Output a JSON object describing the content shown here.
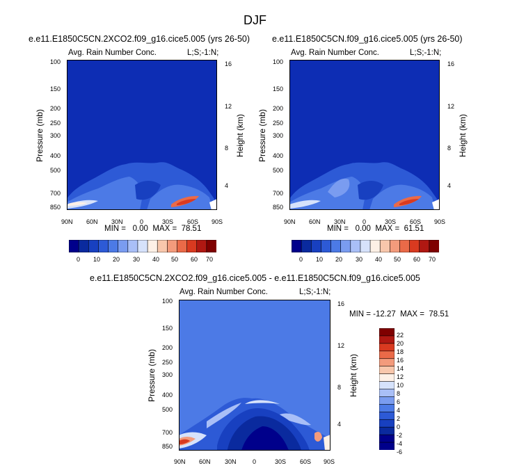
{
  "figure_title": "DJF",
  "chart_data": [
    {
      "type": "heatmap",
      "title": "e.e11.E1850C5CN.2XCO2.f09_g16.cice5.005 (yrs 26-50)",
      "left_label": "Avg. Rain Number Conc.",
      "right_label": "L;S;-1:N;",
      "xlabel": "",
      "ylabel": "Pressure (mb)",
      "ylabel_right": "Height (km)",
      "x_ticks": [
        "90N",
        "60N",
        "30N",
        "0",
        "30S",
        "60S",
        "90S"
      ],
      "y_ticks": [
        "100",
        "150",
        "200",
        "250",
        "300",
        "400",
        "500",
        "700",
        "850"
      ],
      "y_right_ticks": [
        "16",
        "12",
        "8",
        "4"
      ],
      "ylim": [
        100,
        1000
      ],
      "stats": "MIN =   0.00  MAX =  78.51",
      "colorbar_ticks": [
        "0",
        "10",
        "20",
        "30",
        "40",
        "50",
        "60",
        "70"
      ]
    },
    {
      "type": "heatmap",
      "title": "e.e11.E1850C5CN.f09_g16.cice5.005 (yrs 26-50)",
      "left_label": "Avg. Rain Number Conc.",
      "right_label": "L;S;-1:N;",
      "xlabel": "",
      "ylabel": "Pressure (mb)",
      "ylabel_right": "Height (km)",
      "x_ticks": [
        "90N",
        "60N",
        "30N",
        "0",
        "30S",
        "60S",
        "90S"
      ],
      "y_ticks": [
        "100",
        "150",
        "200",
        "250",
        "300",
        "400",
        "500",
        "700",
        "850"
      ],
      "y_right_ticks": [
        "16",
        "12",
        "8",
        "4"
      ],
      "ylim": [
        100,
        1000
      ],
      "stats": "MIN =   0.00  MAX =  61.51",
      "colorbar_ticks": [
        "0",
        "10",
        "20",
        "30",
        "40",
        "50",
        "60",
        "70"
      ]
    },
    {
      "type": "heatmap",
      "title": "e.e11.E1850C5CN.2XCO2.f09_g16.cice5.005 - e.e11.E1850C5CN.f09_g16.cice5.005",
      "left_label": "Avg. Rain Number Conc.",
      "right_label": "L;S;-1:N;",
      "xlabel": "",
      "ylabel": "Pressure (mb)",
      "ylabel_right": "Height (km)",
      "x_ticks": [
        "90N",
        "60N",
        "30N",
        "0",
        "30S",
        "60S",
        "90S"
      ],
      "y_ticks": [
        "100",
        "150",
        "200",
        "250",
        "300",
        "400",
        "500",
        "700",
        "850"
      ],
      "y_right_ticks": [
        "16",
        "12",
        "8",
        "4"
      ],
      "ylim": [
        100,
        1000
      ],
      "stats": "MIN = -12.27  MAX =  78.51",
      "colorbar_ticks": [
        "22",
        "20",
        "18",
        "16",
        "14",
        "12",
        "10",
        "8",
        "6",
        "4",
        "2",
        "0",
        "-2",
        "-4",
        "-6"
      ]
    }
  ],
  "colors": {
    "background_blue": "#0d2db4",
    "palette": [
      "#00008b",
      "#0a2a9e",
      "#1840c0",
      "#2d5ad6",
      "#4c7ae6",
      "#7a9cf0",
      "#a9bff7",
      "#d6e2fb",
      "#fdf0e6",
      "#f8c7ac",
      "#f39b7c",
      "#ea6a48",
      "#d93a20",
      "#b01812",
      "#7f0000"
    ]
  }
}
